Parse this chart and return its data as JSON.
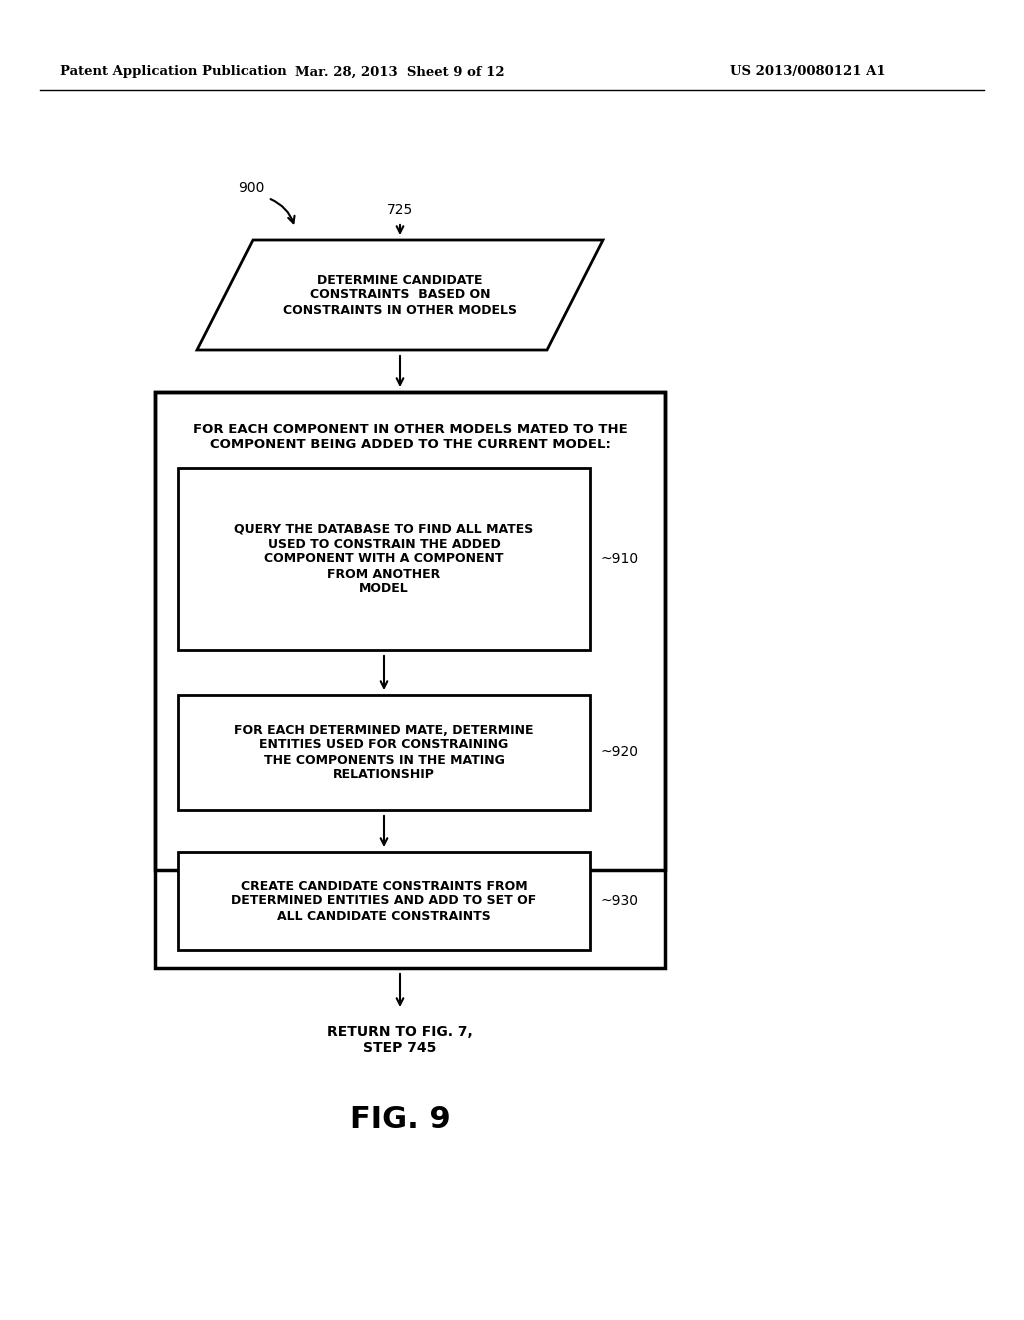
{
  "bg_color": "#ffffff",
  "header_left": "Patent Application Publication",
  "header_mid": "Mar. 28, 2013  Sheet 9 of 12",
  "header_right": "US 2013/0080121 A1",
  "fig_label": "FIG. 9",
  "label_900": "900",
  "label_725": "725",
  "label_910": "~910",
  "label_920": "~920",
  "label_930": "~930",
  "parallelogram_text": "DETERMINE CANDIDATE\nCONSTRAINTS  BASED ON\nCONSTRAINTS IN OTHER MODELS",
  "outer_box_text": "FOR EACH COMPONENT IN OTHER MODELS MATED TO THE\nCOMPONENT BEING ADDED TO THE CURRENT MODEL:",
  "box910_text": "QUERY THE DATABASE TO FIND ALL MATES\nUSED TO CONSTRAIN THE ADDED\nCOMPONENT WITH A COMPONENT\nFROM ANOTHER\nMODEL",
  "box920_text": "FOR EACH DETERMINED MATE, DETERMINE\nENTITIES USED FOR CONSTRAINING\nTHE COMPONENTS IN THE MATING\nRELATIONSHIP",
  "box930_text": "CREATE CANDIDATE CONSTRAINTS FROM\nDETERMINED ENTITIES AND ADD TO SET OF\nALL CANDIDATE CONSTRAINTS",
  "return_text": "RETURN TO FIG. 7,\nSTEP 745"
}
